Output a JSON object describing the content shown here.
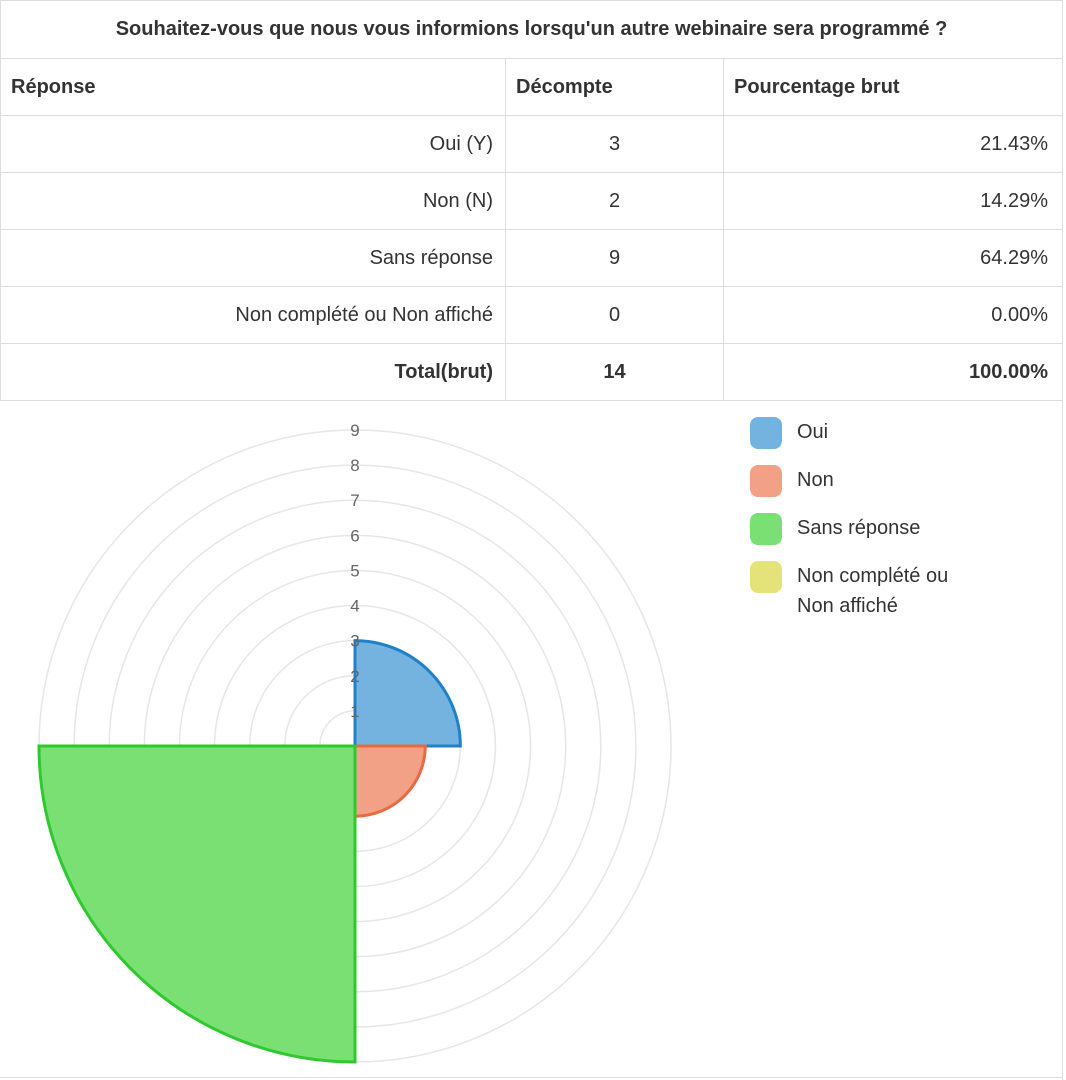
{
  "question": "Souhaitez-vous que nous vous informions lorsqu'un autre webinaire sera programmé ?",
  "table": {
    "headers": [
      "Réponse",
      "Décompte",
      "Pourcentage brut"
    ],
    "rows": [
      {
        "label": "Oui (Y)",
        "count": "3",
        "pct": "21.43%"
      },
      {
        "label": "Non (N)",
        "count": "2",
        "pct": "14.29%"
      },
      {
        "label": "Sans réponse",
        "count": "9",
        "pct": "64.29%"
      },
      {
        "label": "Non complété ou Non affiché",
        "count": "0",
        "pct": "0.00%"
      }
    ],
    "total": {
      "label": "Total(brut)",
      "count": "14",
      "pct": "100.00%"
    }
  },
  "chart_data": {
    "type": "polarArea",
    "categories": [
      "Oui",
      "Non",
      "Sans réponse",
      "Non complété ou Non affiché"
    ],
    "values": [
      3,
      2,
      9,
      0
    ],
    "colors": [
      "#74b3e0",
      "#f2a186",
      "#7ae074",
      "#e3e37a"
    ],
    "border_colors": [
      "#2080c8",
      "#e86a40",
      "#2fc92f",
      "#c8c830"
    ],
    "r_ticks": [
      "1",
      "2",
      "3",
      "4",
      "5",
      "6",
      "7",
      "8",
      "9"
    ],
    "r_range": [
      0,
      9
    ],
    "legend_position": "right"
  }
}
